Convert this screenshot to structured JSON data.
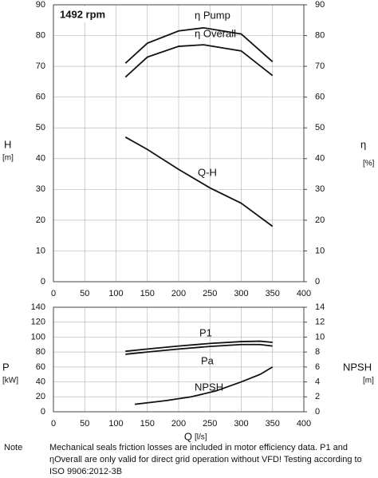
{
  "chart_data": [
    {
      "type": "line",
      "annotation": "1492 rpm",
      "ylabel": "H",
      "yunit": "[m]",
      "y2label": "η",
      "y2unit": "[%]",
      "xlim": [
        0,
        400
      ],
      "xticks": [
        0,
        50,
        100,
        150,
        200,
        250,
        300,
        350,
        400
      ],
      "ylim": [
        0,
        90
      ],
      "yticks": [
        0,
        10,
        20,
        30,
        40,
        50,
        60,
        70,
        80,
        90
      ],
      "y2lim": [
        0,
        90
      ],
      "y2ticks": [
        0,
        10,
        20,
        30,
        40,
        50,
        60,
        70,
        80,
        90
      ],
      "grid": true,
      "series": [
        {
          "name": "η Pump",
          "color": "#111111",
          "axis": "y2",
          "x": [
            115,
            150,
            200,
            240,
            300,
            350
          ],
          "values": [
            71,
            77.5,
            81.5,
            82.5,
            80.5,
            71.5
          ]
        },
        {
          "name": "η Overall",
          "color": "#111111",
          "axis": "y2",
          "x": [
            115,
            150,
            200,
            240,
            300,
            350
          ],
          "values": [
            66.5,
            73,
            76.5,
            77,
            75,
            67
          ]
        },
        {
          "name": "Q-H",
          "color": "#111111",
          "x": [
            115,
            150,
            200,
            250,
            300,
            350
          ],
          "values": [
            47,
            43,
            36.5,
            30.5,
            25.5,
            18
          ]
        }
      ]
    },
    {
      "type": "line",
      "ylabel": "P",
      "yunit": "[kW]",
      "y2label": "NPSH",
      "y2unit": "[m]",
      "xlabel": "Q",
      "xunit": "[l/s]",
      "xlim": [
        0,
        400
      ],
      "xticks": [
        0,
        50,
        100,
        150,
        200,
        250,
        300,
        350,
        400
      ],
      "ylim": [
        0,
        140
      ],
      "yticks": [
        0,
        20,
        40,
        60,
        80,
        100,
        120,
        140
      ],
      "y2lim": [
        0,
        14
      ],
      "y2ticks": [
        0,
        2,
        4,
        6,
        8,
        10,
        12,
        14
      ],
      "grid": true,
      "series": [
        {
          "name": "P1",
          "color": "#111111",
          "x": [
            115,
            150,
            200,
            250,
            300,
            330,
            350
          ],
          "values": [
            81,
            84,
            88,
            91.5,
            94,
            94.5,
            93
          ]
        },
        {
          "name": "Pa",
          "color": "#111111",
          "x": [
            115,
            150,
            200,
            250,
            300,
            330,
            350
          ],
          "values": [
            77,
            80,
            84,
            87.5,
            90,
            90,
            88
          ]
        },
        {
          "name": "NPSH",
          "color": "#111111",
          "axis": "y2",
          "x": [
            130,
            180,
            220,
            260,
            300,
            330,
            350
          ],
          "values": [
            1,
            1.5,
            2,
            2.8,
            4,
            5,
            6
          ]
        }
      ]
    }
  ],
  "note": {
    "label": "Note",
    "lines": [
      "Mechanical seals friction losses are included in motor efficiency data. P1 and",
      "ηOverall are only valid for direct grid operation without VFD! Testing according to",
      "ISO 9906:2012-3B"
    ]
  }
}
